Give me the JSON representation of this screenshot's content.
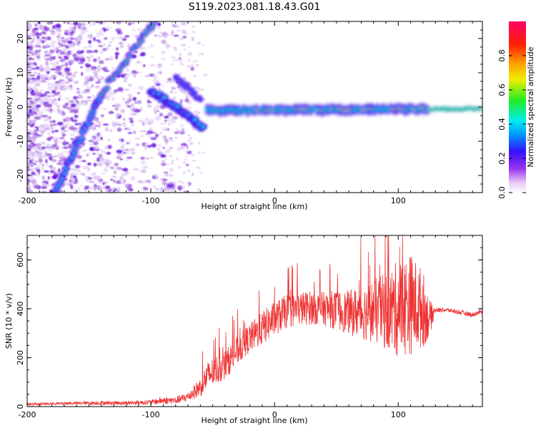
{
  "figure": {
    "title": "S119.2023.081.18.43.G01"
  },
  "chart_data": [
    {
      "type": "heatmap",
      "xlabel": "Height of straight line (km)",
      "ylabel": "Frequency (Hz)",
      "xlim": [
        -200,
        168
      ],
      "ylim": [
        -25,
        25
      ],
      "xticks": [
        -200,
        -100,
        0,
        100
      ],
      "yticks": [
        -20,
        -10,
        0,
        10,
        20
      ],
      "colorbar": {
        "label": "Normalized spectral amplitude",
        "range": [
          0,
          1
        ],
        "ticks": [
          0.0,
          0.2,
          0.4,
          0.6,
          0.8
        ],
        "tick_labels": [
          "0.0",
          "0.2",
          "0.4",
          "0.6",
          "0.8"
        ],
        "colormap": "rainbow (white-violet-blue-cyan-green-yellow-orange-red-magenta)"
      },
      "features": [
        {
          "kind": "rising chirp",
          "from": [
            -178,
            -25
          ],
          "to": [
            -140,
            4
          ]
        },
        {
          "kind": "rising chirp",
          "from": [
            -140,
            4
          ],
          "to": [
            -97,
            25
          ]
        },
        {
          "kind": "descending track",
          "from": [
            -100,
            5
          ],
          "to": [
            -58,
            -6
          ]
        },
        {
          "kind": "descending track",
          "from": [
            -80,
            9
          ],
          "to": [
            -60,
            2
          ]
        },
        {
          "kind": "steady carrier",
          "from": [
            -55,
            -1
          ],
          "to": [
            168,
            -0.5
          ]
        }
      ]
    },
    {
      "type": "line",
      "xlabel": "Height of straight line (km)",
      "ylabel": "SNR (10 * v/v)",
      "xlim": [
        -200,
        168
      ],
      "ylim": [
        0,
        700
      ],
      "xticks": [
        -200,
        -100,
        0,
        100
      ],
      "yticks": [
        0,
        200,
        400,
        600
      ],
      "series": [
        {
          "color": "#ee3333",
          "x": [
            -200,
            -180,
            -160,
            -140,
            -120,
            -100,
            -90,
            -80,
            -70,
            -60,
            -55,
            -50,
            -40,
            -30,
            -20,
            -10,
            0,
            10,
            20,
            30,
            40,
            50,
            60,
            70,
            80,
            90,
            100,
            110,
            120,
            125,
            130,
            140,
            150,
            160,
            168
          ],
          "y": [
            10,
            12,
            14,
            15,
            15,
            18,
            25,
            25,
            40,
            80,
            120,
            140,
            170,
            230,
            280,
            320,
            360,
            390,
            400,
            405,
            400,
            395,
            385,
            385,
            390,
            390,
            400,
            420,
            400,
            360,
            395,
            395,
            385,
            375,
            390
          ],
          "band": [
            5,
            5,
            6,
            8,
            8,
            10,
            15,
            15,
            20,
            40,
            60,
            60,
            60,
            60,
            60,
            70,
            70,
            70,
            70,
            70,
            70,
            80,
            90,
            110,
            130,
            160,
            200,
            210,
            160,
            80,
            10,
            8,
            10,
            10,
            8
          ]
        }
      ]
    }
  ]
}
